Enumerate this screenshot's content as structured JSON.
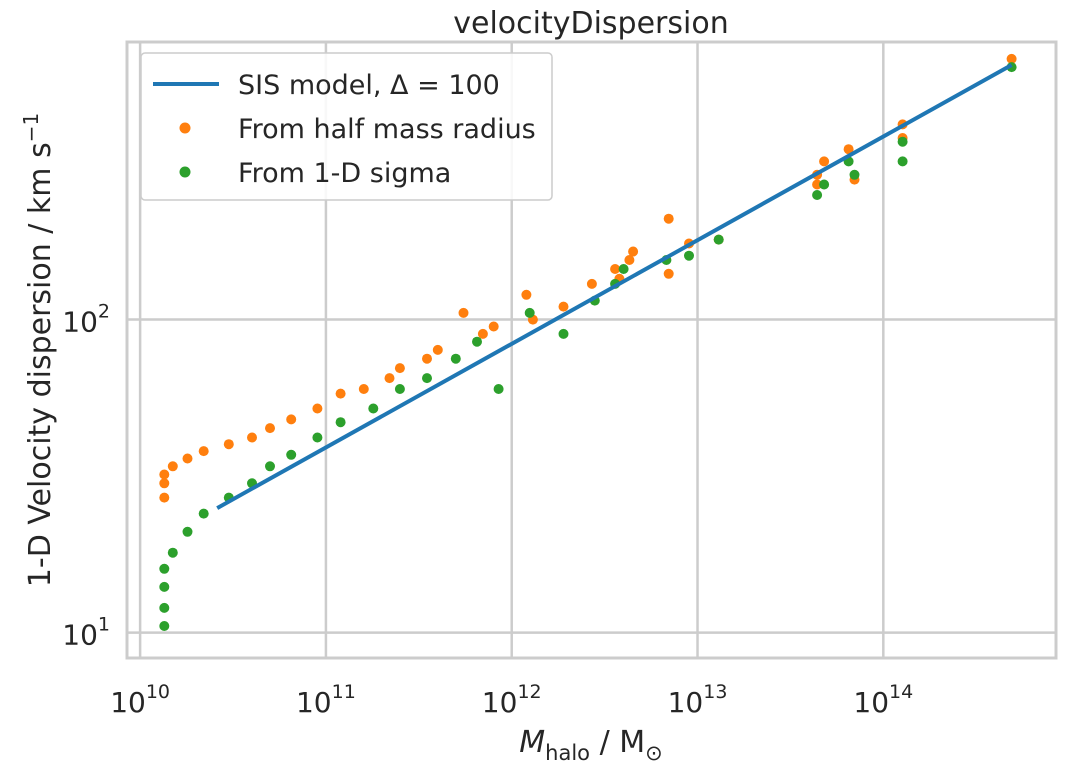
{
  "chart_data": {
    "type": "scatter",
    "title": "velocityDispersion",
    "xlabel": {
      "main": "M",
      "sub": "halo",
      "rest": " / M",
      "sun": "⊙"
    },
    "ylabel": {
      "main": "1-D Velocity dispersion / km s",
      "sup": "−1"
    },
    "xscale": "log",
    "yscale": "log",
    "xlim": [
      8500000000.0,
      850000000000000.0
    ],
    "ylim": [
      8.3,
      770
    ],
    "grid": true,
    "legend_position": "top-left",
    "x_ticks": [
      {
        "value": 10000000000.0,
        "base": "10",
        "exp": "10"
      },
      {
        "value": 100000000000.0,
        "base": "10",
        "exp": "11"
      },
      {
        "value": 1000000000000.0,
        "base": "10",
        "exp": "12"
      },
      {
        "value": 10000000000000.0,
        "base": "10",
        "exp": "13"
      },
      {
        "value": 100000000000000.0,
        "base": "10",
        "exp": "14"
      }
    ],
    "y_ticks": [
      {
        "value": 10,
        "base": "10",
        "exp": "1"
      },
      {
        "value": 100,
        "base": "10",
        "exp": "2"
      }
    ],
    "series": [
      {
        "name": "SIS model, Δ = 100",
        "kind": "line",
        "color": "#1f77b4",
        "x": [
          26000000000.0,
          490000000000000.0
        ],
        "y": [
          25.0,
          650
        ]
      },
      {
        "name": "From half mass radius",
        "kind": "scatter",
        "color": "#ff7f0e",
        "x": [
          490000000000000.0,
          127000000000000.0,
          127000000000000.0,
          65000000000000.0,
          70000000000000.0,
          48000000000000.0,
          44000000000000.0,
          44000000000000.0,
          13000000000000.0,
          9000000000000.0,
          7000000000000.0,
          7000000000000.0,
          4500000000000.0,
          4300000000000.0,
          3800000000000.0,
          3600000000000.0,
          2700000000000.0,
          1900000000000.0,
          1300000000000.0,
          1200000000000.0,
          800000000000.0,
          700000000000.0,
          550000000000.0,
          400000000000.0,
          350000000000.0,
          250000000000.0,
          220000000000.0,
          160000000000.0,
          120000000000.0,
          90000000000.0,
          65000000000.0,
          50000000000.0,
          40000000000.0,
          30000000000.0,
          22000000000.0,
          18000000000.0,
          15000000000.0,
          13500000000.0,
          13500000000.0,
          13500000000.0
        ],
        "y": [
          680,
          420,
          380,
          350,
          280,
          320,
          270,
          290,
          180,
          175,
          210,
          140,
          165,
          155,
          135,
          145,
          130,
          110,
          100,
          120,
          95,
          90,
          105,
          80,
          75,
          70,
          65,
          60,
          58,
          52,
          48,
          45,
          42,
          40,
          38,
          36,
          34,
          32,
          30,
          27
        ]
      },
      {
        "name": "From 1-D sigma",
        "kind": "scatter",
        "color": "#2ca02c",
        "x": [
          490000000000000.0,
          127000000000000.0,
          127000000000000.0,
          65000000000000.0,
          70000000000000.0,
          48000000000000.0,
          44000000000000.0,
          13000000000000.0,
          9000000000000.0,
          6800000000000.0,
          4000000000000.0,
          3600000000000.0,
          2800000000000.0,
          1900000000000.0,
          1250000000000.0,
          850000000000.0,
          650000000000.0,
          500000000000.0,
          350000000000.0,
          250000000000.0,
          180000000000.0,
          120000000000.0,
          90000000000.0,
          65000000000.0,
          50000000000.0,
          40000000000.0,
          30000000000.0,
          22000000000.0,
          18000000000.0,
          15000000000.0,
          13500000000.0,
          13500000000.0,
          13500000000.0,
          13500000000.0
        ],
        "y": [
          640,
          370,
          320,
          320,
          290,
          270,
          250,
          180,
          160,
          155,
          145,
          130,
          115,
          90,
          105,
          60,
          85,
          75,
          65,
          60,
          52,
          47,
          42,
          37,
          34,
          30,
          27,
          24,
          21,
          18,
          16,
          14,
          12,
          10.5
        ]
      }
    ]
  }
}
